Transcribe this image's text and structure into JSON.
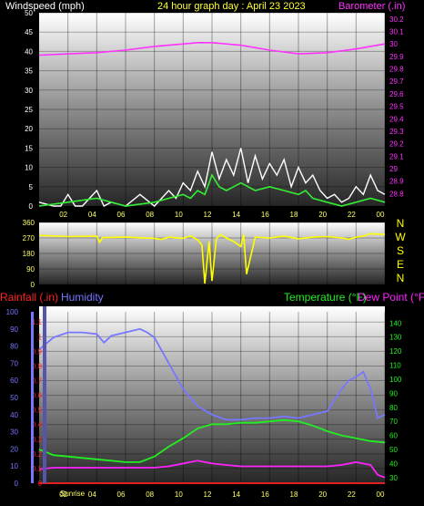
{
  "header": {
    "windspeed": "Windspeed (mph)",
    "title": "24 hour graph day : April 23 2023",
    "barometer": "Barometer (.in)"
  },
  "directions": [
    "N",
    "W",
    "S",
    "E",
    "N"
  ],
  "bottom_labels": {
    "rainfall": "Rainfall (.in)",
    "humidity": "Humidity",
    "temperature": "Temperature (°F)",
    "dewpoint": "Dew Point (°F)",
    "sunrise": "Sunrise"
  },
  "colors": {
    "windspeed_label": "#ffffff",
    "title": "#ffff33",
    "barometer": "#ff33ff",
    "gust": "#ffffff",
    "wind": "#33ee33",
    "direction": "#ffff00",
    "rainfall": "#ff2222",
    "humidity": "#7777ff",
    "temperature": "#22ee22",
    "dewpoint": "#ff22ff"
  },
  "chart_data": [
    {
      "type": "line",
      "title": "24 hour graph day : April 23 2023",
      "x_ticks": [
        "02",
        "04",
        "06",
        "08",
        "10",
        "12",
        "14",
        "16",
        "18",
        "20",
        "22",
        "00"
      ],
      "xlim": [
        0,
        24
      ],
      "ylabel": "Windspeed (mph)",
      "ylim": [
        0,
        50
      ],
      "y_ticks": [
        0,
        5,
        10,
        15,
        20,
        25,
        30,
        35,
        40,
        45,
        50
      ],
      "y2label": "Barometer (.in)",
      "y2lim": [
        28.7,
        30.25
      ],
      "y2_ticks": [
        28.8,
        28.9,
        29,
        29.1,
        29.2,
        29.3,
        29.4,
        29.5,
        29.6,
        29.7,
        29.8,
        29.9,
        30,
        30.1,
        30.2
      ],
      "series": [
        {
          "name": "Barometer (.in)",
          "axis": "right",
          "x": [
            0,
            2,
            4,
            6,
            8,
            10,
            11,
            12,
            14,
            16,
            18,
            20,
            22,
            24
          ],
          "values": [
            29.91,
            29.92,
            29.93,
            29.95,
            29.98,
            30.0,
            30.01,
            30.01,
            29.99,
            29.95,
            29.92,
            29.93,
            29.96,
            30.0
          ]
        },
        {
          "axis": "left",
          "x": [
            0,
            1,
            1.5,
            2,
            2.5,
            3,
            4,
            4.5,
            5,
            6,
            7,
            8,
            9,
            9.5,
            10,
            10.5,
            11,
            11.5,
            12,
            12.5,
            13,
            13.5,
            14,
            14.5,
            15,
            15.5,
            16,
            16.5,
            17,
            17.5,
            18,
            18.5,
            19,
            19.5,
            20,
            20.5,
            21,
            21.5,
            22,
            22.5,
            23,
            23.5,
            24
          ],
          "values": [
            1,
            0,
            0,
            3,
            0,
            0,
            4,
            0,
            1,
            0,
            3,
            0,
            4,
            2,
            6,
            4,
            9,
            5,
            14,
            7,
            12,
            8,
            15,
            6,
            13,
            7,
            11,
            8,
            12,
            5,
            10,
            6,
            8,
            4,
            2,
            3,
            1,
            2,
            5,
            3,
            8,
            4,
            3
          ]
        },
        {
          "axis": "left",
          "x": [
            0,
            2,
            4,
            6,
            8,
            9,
            10,
            10.5,
            11,
            11.5,
            12,
            12.5,
            13,
            14,
            15,
            16,
            17,
            18,
            18.5,
            19,
            20,
            21,
            22,
            23,
            24
          ],
          "values": [
            0,
            1,
            2,
            0,
            1,
            2,
            3,
            2,
            4,
            3,
            8,
            5,
            4,
            6,
            4,
            5,
            4,
            3,
            4,
            2,
            1,
            0,
            1,
            2,
            1
          ]
        }
      ]
    },
    {
      "type": "line",
      "xlim": [
        0,
        24
      ],
      "ylim": [
        0,
        360
      ],
      "y_ticks": [
        0,
        90,
        180,
        270,
        360
      ],
      "series": [
        {
          "axis": "left",
          "x": [
            0,
            2,
            4,
            4.2,
            4.4,
            6,
            8,
            8.5,
            9,
            10,
            10.5,
            11,
            11.3,
            11.5,
            11.8,
            12,
            12.3,
            12.6,
            13,
            13.5,
            14,
            14.2,
            14.4,
            15,
            16,
            17,
            18,
            19,
            20,
            21,
            21.5,
            22,
            22.5,
            23,
            24
          ],
          "values": [
            285,
            278,
            280,
            245,
            272,
            275,
            268,
            262,
            275,
            268,
            282,
            260,
            230,
            5,
            250,
            20,
            265,
            290,
            270,
            250,
            220,
            290,
            60,
            275,
            270,
            280,
            265,
            275,
            278,
            270,
            262,
            275,
            280,
            295,
            290
          ]
        }
      ]
    },
    {
      "type": "line",
      "xlim": [
        0,
        24
      ],
      "x_ticks": [
        "02",
        "04",
        "06",
        "08",
        "10",
        "12",
        "14",
        "16",
        "18",
        "20",
        "22",
        "00"
      ],
      "y_humidity_ticks": [
        0,
        10,
        20,
        30,
        40,
        50,
        60,
        70,
        80,
        90,
        100
      ],
      "y_rain_ticks": [
        0,
        0.1,
        0.2,
        0.3,
        0.4,
        0.5,
        0.6,
        0.7,
        0.8,
        0.9,
        1,
        1.1
      ],
      "y_temp_ticks": [
        30,
        40,
        50,
        60,
        70,
        80,
        90,
        100,
        110,
        120,
        130,
        140
      ],
      "series": [
        {
          "name": "Humidity",
          "axis": "humidity",
          "x": [
            0,
            1,
            2,
            3,
            4,
            4.5,
            5,
            6,
            7,
            7.5,
            8,
            9,
            10,
            11,
            12,
            13,
            14,
            15,
            16,
            17,
            18,
            19,
            20,
            21,
            21.5,
            22,
            22.5,
            23,
            23.5,
            24
          ],
          "values": [
            78,
            85,
            88,
            88,
            87,
            82,
            86,
            88,
            90,
            88,
            85,
            70,
            55,
            45,
            40,
            37,
            37,
            38,
            38,
            39,
            38,
            40,
            42,
            55,
            60,
            62,
            65,
            55,
            38,
            40
          ]
        },
        {
          "name": "Temperature (°F)",
          "axis": "temp",
          "x": [
            0,
            1,
            2,
            3,
            4,
            5,
            6,
            7,
            8,
            9,
            10,
            11,
            12,
            13,
            14,
            15,
            16,
            17,
            18,
            19,
            20,
            21,
            22,
            23,
            24
          ],
          "values": [
            50,
            46,
            45,
            44,
            43,
            42,
            41,
            41,
            45,
            52,
            58,
            65,
            68,
            68,
            69,
            69,
            70,
            71,
            70,
            67,
            63,
            60,
            58,
            56,
            55
          ]
        },
        {
          "name": "Dew Point (°F)",
          "axis": "temp",
          "x": [
            0,
            1,
            2,
            3,
            4,
            5,
            6,
            7,
            8,
            9,
            10,
            11,
            12,
            13,
            14,
            15,
            16,
            17,
            18,
            19,
            20,
            21,
            22,
            23,
            23.5,
            24
          ],
          "values": [
            36,
            37,
            37,
            37,
            37,
            37,
            37,
            37,
            37,
            38,
            40,
            42,
            40,
            39,
            38,
            38,
            38,
            38,
            38,
            38,
            38,
            39,
            41,
            39,
            32,
            30
          ]
        },
        {
          "name": "Rainfall (.in)",
          "axis": "rain",
          "x": [
            0,
            24
          ],
          "values": [
            0,
            0
          ]
        }
      ]
    }
  ]
}
